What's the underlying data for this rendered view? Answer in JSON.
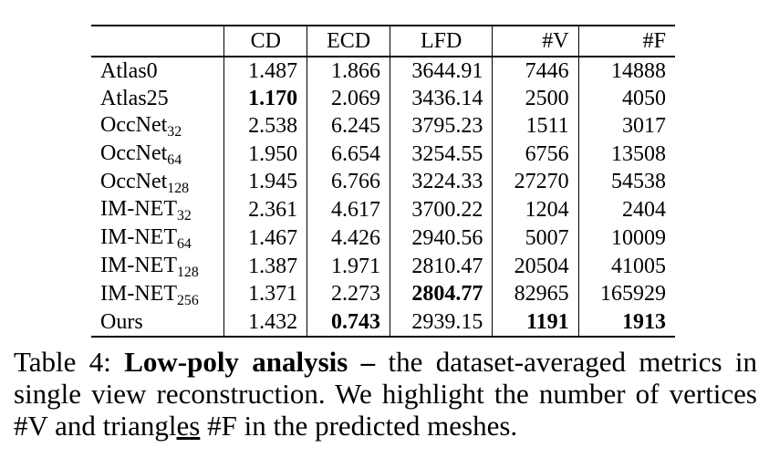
{
  "table": {
    "headers": [
      "",
      "CD",
      "ECD",
      "LFD",
      "#V",
      "#F"
    ],
    "rows": [
      {
        "method": "Atlas0",
        "method_sub": "",
        "cd": "1.487",
        "ecd": "1.866",
        "lfd": "3644.91",
        "v": "7446",
        "f": "14888"
      },
      {
        "method": "Atlas25",
        "method_sub": "",
        "cd": "1.170",
        "ecd": "2.069",
        "lfd": "3436.14",
        "v": "2500",
        "f": "4050"
      },
      {
        "method": "OccNet",
        "method_sub": "32",
        "cd": "2.538",
        "ecd": "6.245",
        "lfd": "3795.23",
        "v": "1511",
        "f": "3017"
      },
      {
        "method": "OccNet",
        "method_sub": "64",
        "cd": "1.950",
        "ecd": "6.654",
        "lfd": "3254.55",
        "v": "6756",
        "f": "13508"
      },
      {
        "method": "OccNet",
        "method_sub": "128",
        "cd": "1.945",
        "ecd": "6.766",
        "lfd": "3224.33",
        "v": "27270",
        "f": "54538"
      },
      {
        "method": "IM-NET",
        "method_sub": "32",
        "cd": "2.361",
        "ecd": "4.617",
        "lfd": "3700.22",
        "v": "1204",
        "f": "2404"
      },
      {
        "method": "IM-NET",
        "method_sub": "64",
        "cd": "1.467",
        "ecd": "4.426",
        "lfd": "2940.56",
        "v": "5007",
        "f": "10009"
      },
      {
        "method": "IM-NET",
        "method_sub": "128",
        "cd": "1.387",
        "ecd": "1.971",
        "lfd": "2810.47",
        "v": "20504",
        "f": "41005"
      },
      {
        "method": "IM-NET",
        "method_sub": "256",
        "cd": "1.371",
        "ecd": "2.273",
        "lfd": "2804.77",
        "v": "82965",
        "f": "165929"
      },
      {
        "method": "Ours",
        "method_sub": "",
        "cd": "1.432",
        "ecd": "0.743",
        "lfd": "2939.15",
        "v": "1191",
        "f": "1913"
      }
    ]
  },
  "caption": {
    "label": "Table 4: ",
    "title": "Low-poly analysis –",
    "text_before_underline": " the dataset-averaged metrics in single view reconstruction. We highlight the number of vertices #V and triangl",
    "underlined": "es",
    "text_after_underline": " #F in the predicted meshes."
  }
}
